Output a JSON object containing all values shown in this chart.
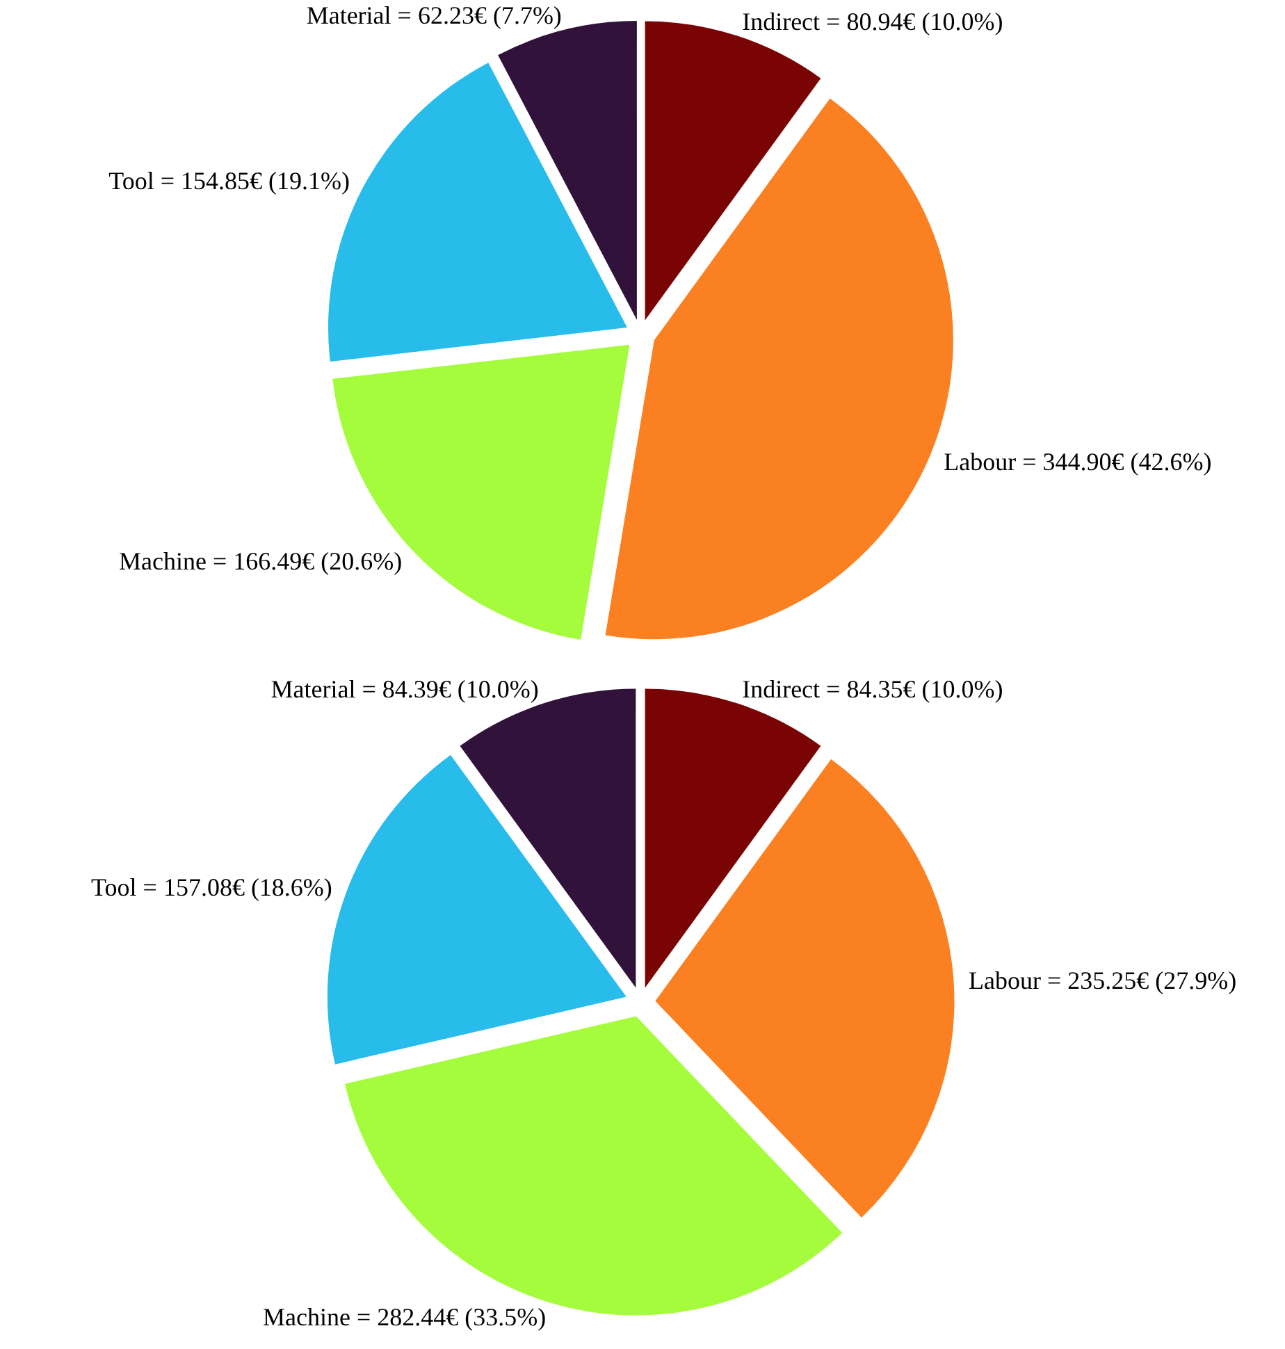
{
  "chart_data": [
    {
      "type": "pie",
      "categories": [
        "Indirect",
        "Labour",
        "Machine",
        "Tool",
        "Material"
      ],
      "values": [
        80.94,
        344.9,
        166.49,
        154.85,
        62.23
      ],
      "colors": [
        "#7a0403",
        "#fb8022",
        "#a4fc3c",
        "#28bceb",
        "#30123b"
      ],
      "value_labels": [
        "= 80.94€ (10.0%)",
        "= 344.90€ (42.6%)",
        "= 166.49€ (20.6%)",
        "= 154.85€ (19.1%)",
        "= 62.23€ (7.7%)"
      ]
    },
    {
      "type": "pie",
      "categories": [
        "Indirect",
        "Labour",
        "Machine",
        "Tool",
        "Material"
      ],
      "values": [
        84.35,
        235.25,
        282.44,
        157.08,
        84.39
      ],
      "colors": [
        "#7a0403",
        "#fb8022",
        "#a4fc3c",
        "#28bceb",
        "#30123b"
      ],
      "value_labels": [
        "= 84.35€ (10.0%)",
        "= 235.25€ (27.9%)",
        "= 282.44€ (33.5%)",
        "= 157.08€ (18.6%)",
        "= 84.39€ (10.0%)"
      ]
    }
  ]
}
